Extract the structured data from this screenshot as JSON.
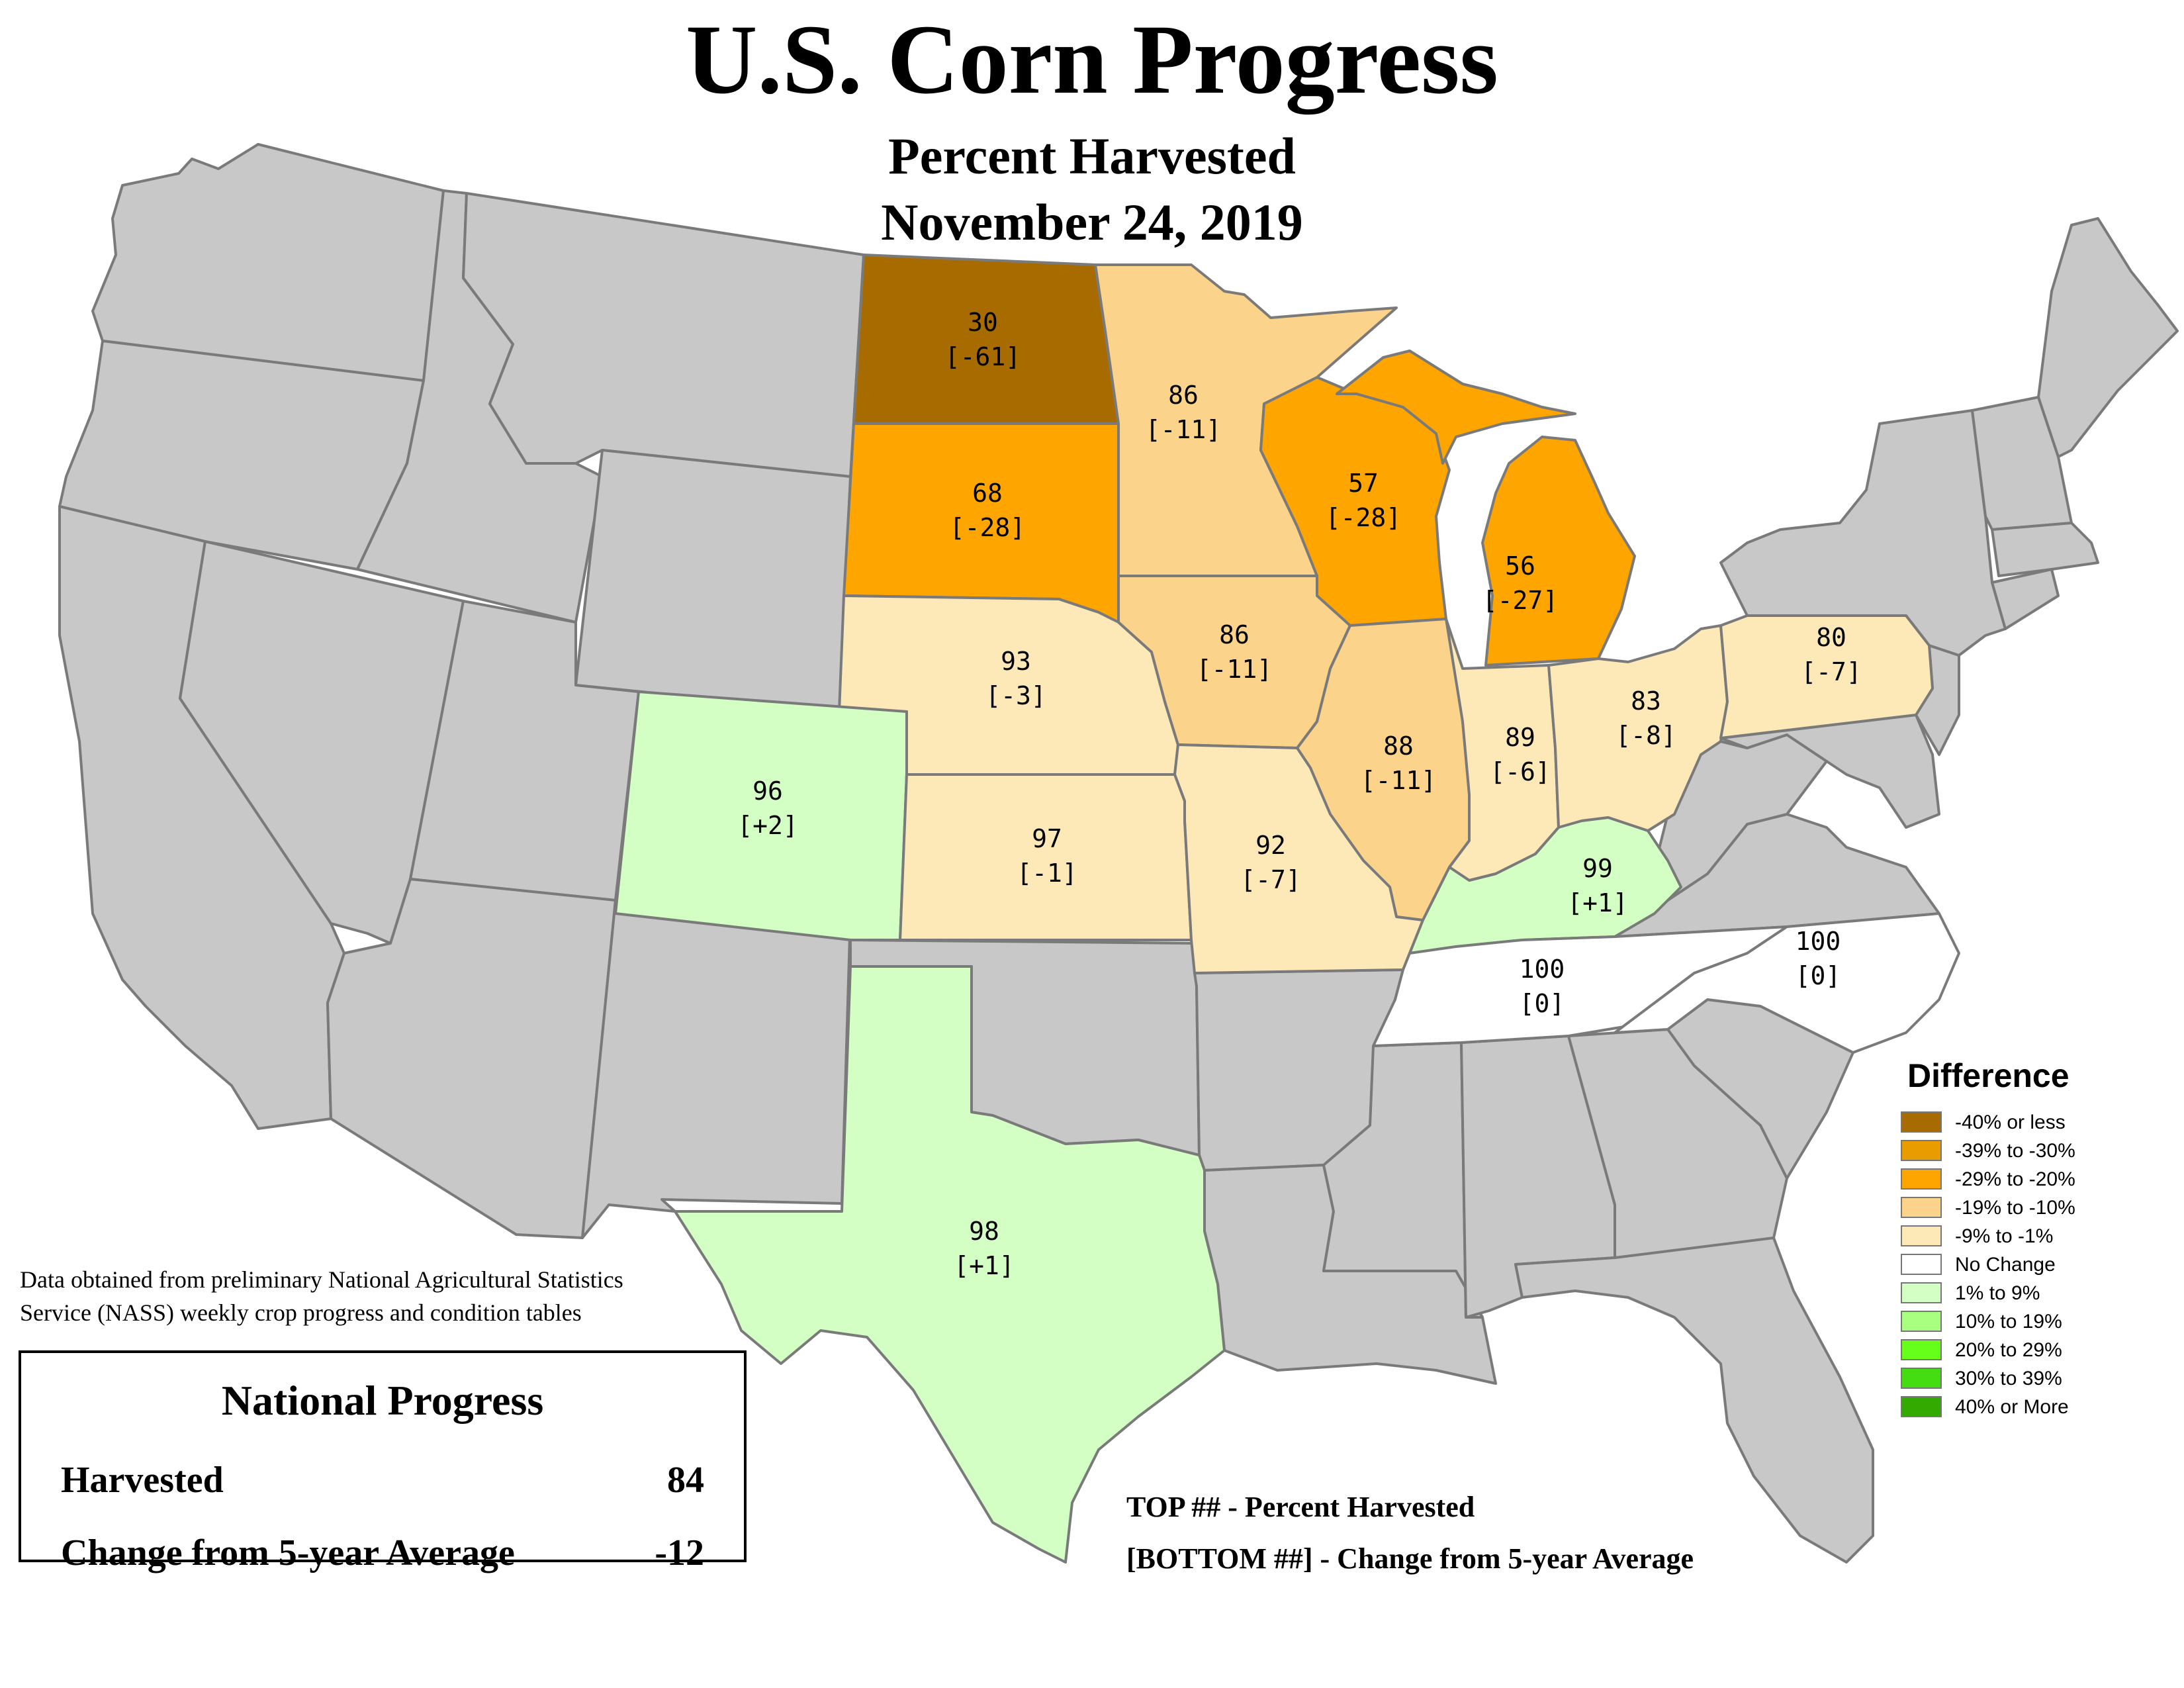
{
  "header": {
    "title": "U.S. Corn Progress",
    "subtitle": "Percent Harvested",
    "date": "November 24, 2019"
  },
  "colors": {
    "no_data": "#c8c8c8",
    "state_border": "#7a7a7a"
  },
  "legend": {
    "title": "Difference",
    "items": [
      {
        "label": "-40% or less",
        "color": "#a86b00"
      },
      {
        "label": "-39% to -30%",
        "color": "#e89c00"
      },
      {
        "label": "-29% to -20%",
        "color": "#ffa500"
      },
      {
        "label": "-19% to -10%",
        "color": "#fcd38a"
      },
      {
        "label": "-9% to -1%",
        "color": "#fde8b8"
      },
      {
        "label": "No Change",
        "color": "#ffffff"
      },
      {
        "label": "1% to 9%",
        "color": "#d4ffc4"
      },
      {
        "label": "10% to 19%",
        "color": "#a8ff80"
      },
      {
        "label": "20% to 29%",
        "color": "#66ff1a"
      },
      {
        "label": "30% to 39%",
        "color": "#44dd11"
      },
      {
        "label": "40% or More",
        "color": "#33aa00"
      }
    ]
  },
  "states": [
    {
      "name": "North Dakota",
      "top": "30",
      "bottom": "[-61]",
      "color": "#a86b00"
    },
    {
      "name": "Minnesota",
      "top": "86",
      "bottom": "[-11]",
      "color": "#fcd38a"
    },
    {
      "name": "South Dakota",
      "top": "68",
      "bottom": "[-28]",
      "color": "#ffa500"
    },
    {
      "name": "Wisconsin",
      "top": "57",
      "bottom": "[-28]",
      "color": "#ffa500"
    },
    {
      "name": "Michigan",
      "top": "56",
      "bottom": "[-27]",
      "color": "#ffa500"
    },
    {
      "name": "Nebraska",
      "top": "93",
      "bottom": "[-3]",
      "color": "#fde8b8"
    },
    {
      "name": "Iowa",
      "top": "86",
      "bottom": "[-11]",
      "color": "#fcd38a"
    },
    {
      "name": "Illinois",
      "top": "88",
      "bottom": "[-11]",
      "color": "#fcd38a"
    },
    {
      "name": "Indiana",
      "top": "89",
      "bottom": "[-6]",
      "color": "#fde8b8"
    },
    {
      "name": "Ohio",
      "top": "83",
      "bottom": "[-8]",
      "color": "#fde8b8"
    },
    {
      "name": "Pennsylvania",
      "top": "80",
      "bottom": "[-7]",
      "color": "#fde8b8"
    },
    {
      "name": "Colorado",
      "top": "96",
      "bottom": "[+2]",
      "color": "#d4ffc4"
    },
    {
      "name": "Kansas",
      "top": "97",
      "bottom": "[-1]",
      "color": "#fde8b8"
    },
    {
      "name": "Missouri",
      "top": "92",
      "bottom": "[-7]",
      "color": "#fde8b8"
    },
    {
      "name": "Kentucky",
      "top": "99",
      "bottom": "[+1]",
      "color": "#d4ffc4"
    },
    {
      "name": "Tennessee",
      "top": "100",
      "bottom": "[0]",
      "color": "#ffffff"
    },
    {
      "name": "North Carolina",
      "top": "100",
      "bottom": "[0]",
      "color": "#ffffff"
    },
    {
      "name": "Texas",
      "top": "98",
      "bottom": "[+1]",
      "color": "#d4ffc4"
    }
  ],
  "source_note": [
    "Data obtained from preliminary National Agricultural Statistics",
    "Service (NASS) weekly crop progress and condition tables"
  ],
  "national": {
    "title": "National Progress",
    "harvested_label": "Harvested",
    "harvested_value": "84",
    "change_label": "Change from 5-year Average",
    "change_value": "-12"
  },
  "key": {
    "top_line": "TOP ## - Percent Harvested",
    "bottom_line": "[BOTTOM ##] - Change from 5-year Average"
  }
}
